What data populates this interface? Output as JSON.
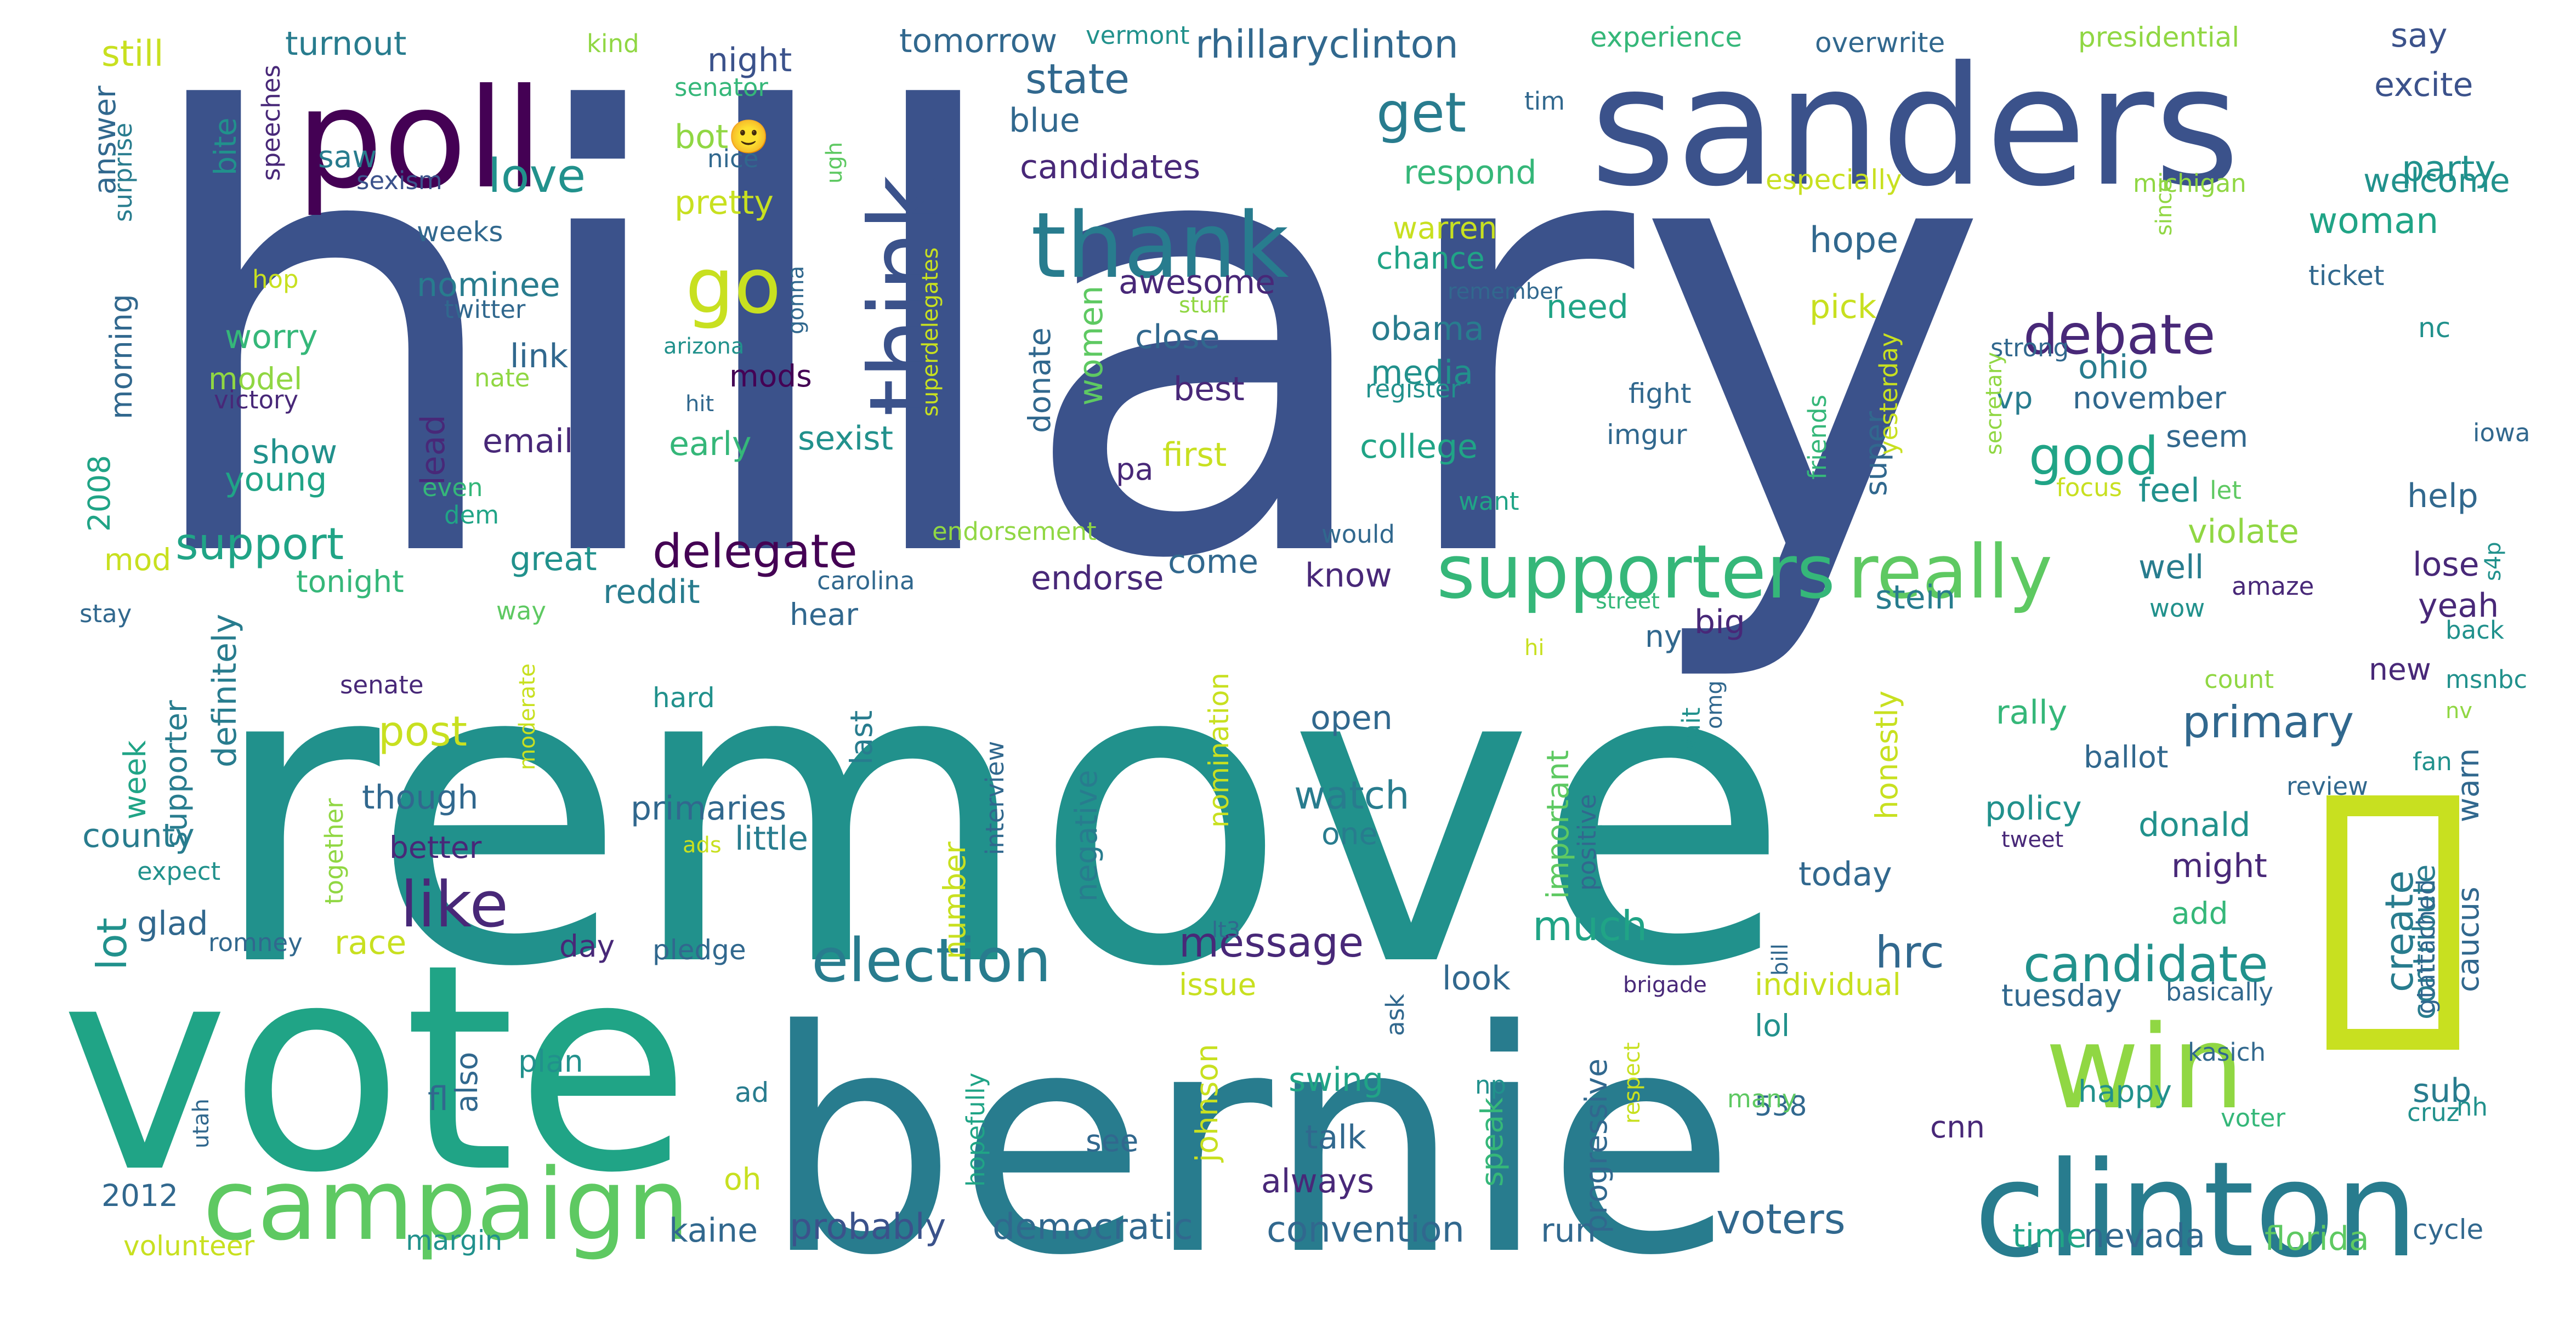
{
  "colors": {
    "background": "#ffffff",
    "palette": [
      "#443983",
      "#3b528b",
      "#31688e",
      "#287c8e",
      "#21918c",
      "#20a486",
      "#35b779",
      "#5ec962",
      "#90d743",
      "#c8e020",
      "#440154",
      "#482878"
    ]
  },
  "words": [
    {
      "text": "hillary",
      "c": 1
    },
    {
      "text": "remove",
      "c": 4
    },
    {
      "text": "vote",
      "c": 5
    },
    {
      "text": "bernie",
      "c": 3
    },
    {
      "text": "sanders",
      "c": 1
    },
    {
      "text": "poll",
      "c": 10
    },
    {
      "text": "clinton",
      "c": 3
    },
    {
      "text": "campaign",
      "c": 7
    },
    {
      "text": "win",
      "c": 8
    },
    {
      "text": "thank",
      "c": 3
    },
    {
      "text": "think",
      "c": 1
    },
    {
      "text": "supporters",
      "c": 6
    },
    {
      "text": "really",
      "c": 7
    },
    {
      "text": "election",
      "c": 3
    },
    {
      "text": "go",
      "c": 9
    },
    {
      "text": "debate",
      "c": 11
    },
    {
      "text": "get",
      "c": 3
    },
    {
      "text": "like",
      "c": 11
    },
    {
      "text": "candidate",
      "c": 4
    },
    {
      "text": "delegate",
      "c": 10
    },
    {
      "text": "good",
      "c": 5
    },
    {
      "text": "primary",
      "c": 2
    },
    {
      "text": "love",
      "c": 4
    },
    {
      "text": "support",
      "c": 5
    },
    {
      "text": "message",
      "c": 11
    },
    {
      "text": "voters",
      "c": 2
    },
    {
      "text": "state",
      "c": 2
    },
    {
      "text": "create",
      "c": 3
    },
    {
      "text": "party",
      "c": 4
    },
    {
      "text": "hrc",
      "c": 2
    },
    {
      "text": "post",
      "c": 9
    },
    {
      "text": "much",
      "c": 5
    },
    {
      "text": "lot",
      "c": 4
    },
    {
      "text": "watch",
      "c": 3
    },
    {
      "text": "democratic",
      "c": 2
    },
    {
      "text": "probably",
      "c": 1
    },
    {
      "text": "convention",
      "c": 2
    },
    {
      "text": "rhillaryclinton",
      "c": 2
    },
    {
      "text": "night",
      "c": 1
    },
    {
      "text": "tomorrow",
      "c": 2
    },
    {
      "text": "turnout",
      "c": 3
    },
    {
      "text": "still",
      "c": 9
    },
    {
      "text": "say",
      "c": 1
    },
    {
      "text": "excite",
      "c": 1
    },
    {
      "text": "woman",
      "c": 5
    },
    {
      "text": "welcome",
      "c": 4
    },
    {
      "text": "candidates",
      "c": 11
    },
    {
      "text": "blue",
      "c": 2
    },
    {
      "text": "bot🙂",
      "c": 8
    },
    {
      "text": "saw",
      "c": 3
    },
    {
      "text": "pretty",
      "c": 9
    },
    {
      "text": "respond",
      "c": 6
    },
    {
      "text": "hope",
      "c": 2
    },
    {
      "text": "awesome",
      "c": 11
    },
    {
      "text": "obama",
      "c": 3
    },
    {
      "text": "need",
      "c": 5
    },
    {
      "text": "pick",
      "c": 9
    },
    {
      "text": "media",
      "c": 4
    },
    {
      "text": "college",
      "c": 5
    },
    {
      "text": "ohio",
      "c": 3
    },
    {
      "text": "november",
      "c": 2
    },
    {
      "text": "vp",
      "c": 3
    },
    {
      "text": "women",
      "c": 7
    },
    {
      "text": "close",
      "c": 2
    },
    {
      "text": "best",
      "c": 11
    },
    {
      "text": "nominee",
      "c": 3
    },
    {
      "text": "worry",
      "c": 6
    },
    {
      "text": "model",
      "c": 8
    },
    {
      "text": "link",
      "c": 2
    },
    {
      "text": "mods",
      "c": 10
    },
    {
      "text": "email",
      "c": 11
    },
    {
      "text": "early",
      "c": 6
    },
    {
      "text": "sexist",
      "c": 4
    },
    {
      "text": "first",
      "c": 9
    },
    {
      "text": "pa",
      "c": 11
    },
    {
      "text": "show",
      "c": 4
    },
    {
      "text": "young",
      "c": 5
    },
    {
      "text": "seem",
      "c": 2
    },
    {
      "text": "feel",
      "c": 4
    },
    {
      "text": "violate",
      "c": 8
    },
    {
      "text": "help",
      "c": 2
    },
    {
      "text": "lose",
      "c": 11
    },
    {
      "text": "yeah",
      "c": 11
    },
    {
      "text": "well",
      "c": 3
    },
    {
      "text": "great",
      "c": 4
    },
    {
      "text": "come",
      "c": 2
    },
    {
      "text": "know",
      "c": 11
    },
    {
      "text": "endorse",
      "c": 11
    },
    {
      "text": "reddit",
      "c": 3
    },
    {
      "text": "tonight",
      "c": 6
    },
    {
      "text": "mod",
      "c": 9
    },
    {
      "text": "stein",
      "c": 3
    },
    {
      "text": "big",
      "c": 11
    },
    {
      "text": "ny",
      "c": 2
    },
    {
      "text": "open",
      "c": 2
    },
    {
      "text": "though",
      "c": 2
    },
    {
      "text": "better",
      "c": 11
    },
    {
      "text": "primaries",
      "c": 2
    },
    {
      "text": "little",
      "c": 3
    },
    {
      "text": "county",
      "c": 3
    },
    {
      "text": "race",
      "c": 9
    },
    {
      "text": "day",
      "c": 11
    },
    {
      "text": "glad",
      "c": 2
    },
    {
      "text": "rally",
      "c": 6
    },
    {
      "text": "ballot",
      "c": 2
    },
    {
      "text": "policy",
      "c": 4
    },
    {
      "text": "donald",
      "c": 4
    },
    {
      "text": "might",
      "c": 11
    },
    {
      "text": "add",
      "c": 6
    },
    {
      "text": "today",
      "c": 2
    },
    {
      "text": "individual",
      "c": 9
    },
    {
      "text": "look",
      "c": 2
    },
    {
      "text": "issue",
      "c": 9
    },
    {
      "text": "tuesday",
      "c": 2
    },
    {
      "text": "happy",
      "c": 4
    },
    {
      "text": "sub",
      "c": 3
    },
    {
      "text": "swing",
      "c": 5
    },
    {
      "text": "talk",
      "c": 2
    },
    {
      "text": "always",
      "c": 11
    },
    {
      "text": "run",
      "c": 2
    },
    {
      "text": "kaine",
      "c": 2
    },
    {
      "text": "time",
      "c": 5
    },
    {
      "text": "nevada",
      "c": 2
    },
    {
      "text": "florida",
      "c": 7
    },
    {
      "text": "cycle",
      "c": 2
    },
    {
      "text": "cnn",
      "c": 11
    },
    {
      "text": "oh",
      "c": 9
    },
    {
      "text": "2012",
      "c": 2
    },
    {
      "text": "fl",
      "c": 2
    },
    {
      "text": "538",
      "c": 2
    },
    {
      "text": "lol",
      "c": 4
    },
    {
      "text": "one",
      "c": 3
    },
    {
      "text": "new",
      "c": 11
    },
    {
      "text": "hear",
      "c": 2
    },
    {
      "text": "plan",
      "c": 4
    },
    {
      "text": "see",
      "c": 2
    },
    {
      "text": "ad",
      "c": 3
    },
    {
      "text": "margin",
      "c": 4
    },
    {
      "text": "volunteer",
      "c": 9
    },
    {
      "text": "experience",
      "c": 6
    },
    {
      "text": "overwrite",
      "c": 2
    },
    {
      "text": "presidential",
      "c": 8
    },
    {
      "text": "especially",
      "c": 9
    },
    {
      "text": "michigan",
      "c": 8
    },
    {
      "text": "ticket",
      "c": 2
    },
    {
      "text": "nc",
      "c": 4
    },
    {
      "text": "iowa",
      "c": 2
    },
    {
      "text": "vermont",
      "c": 4
    },
    {
      "text": "kind",
      "c": 8
    },
    {
      "text": "senator",
      "c": 6
    },
    {
      "text": "tim",
      "c": 2
    },
    {
      "text": "nice",
      "c": 2
    },
    {
      "text": "sexism",
      "c": 1
    },
    {
      "text": "weeks",
      "c": 2
    },
    {
      "text": "hop",
      "c": 9
    },
    {
      "text": "twitter",
      "c": 2
    },
    {
      "text": "nate",
      "c": 8
    },
    {
      "text": "victory",
      "c": 11
    },
    {
      "text": "hit",
      "c": 2
    },
    {
      "text": "arizona",
      "c": 4
    },
    {
      "text": "gonna",
      "c": 2
    },
    {
      "text": "stuff",
      "c": 8
    },
    {
      "text": "remember",
      "c": 2
    },
    {
      "text": "warren",
      "c": 9
    },
    {
      "text": "chance",
      "c": 5
    },
    {
      "text": "register",
      "c": 4
    },
    {
      "text": "fight",
      "c": 2
    },
    {
      "text": "imgur",
      "c": 2
    },
    {
      "text": "strong",
      "c": 2
    },
    {
      "text": "super",
      "c": 2
    },
    {
      "text": "want",
      "c": 5
    },
    {
      "text": "focus",
      "c": 9
    },
    {
      "text": "let",
      "c": 7
    },
    {
      "text": "endorsement",
      "c": 8
    },
    {
      "text": "would",
      "c": 2
    },
    {
      "text": "carolina",
      "c": 2
    },
    {
      "text": "even",
      "c": 6
    },
    {
      "text": "dem",
      "c": 5
    },
    {
      "text": "stay",
      "c": 2
    },
    {
      "text": "way",
      "c": 7
    },
    {
      "text": "street",
      "c": 6
    },
    {
      "text": "amaze",
      "c": 11
    },
    {
      "text": "wow",
      "c": 4
    },
    {
      "text": "back",
      "c": 4
    },
    {
      "text": "count",
      "c": 8
    },
    {
      "text": "msnbc",
      "c": 4
    },
    {
      "text": "nv",
      "c": 8
    },
    {
      "text": "fan",
      "c": 4
    },
    {
      "text": "review",
      "c": 2
    },
    {
      "text": "hi",
      "c": 9
    },
    {
      "text": "senate",
      "c": 11
    },
    {
      "text": "hard",
      "c": 4
    },
    {
      "text": "wait",
      "c": 4
    },
    {
      "text": "omg",
      "c": 2
    },
    {
      "text": "expect",
      "c": 4
    },
    {
      "text": "romney",
      "c": 2
    },
    {
      "text": "ads",
      "c": 9
    },
    {
      "text": "pledge",
      "c": 2
    },
    {
      "text": "lt3",
      "c": 2
    },
    {
      "text": "tweet",
      "c": 11
    },
    {
      "text": "basically",
      "c": 2
    },
    {
      "text": "np",
      "c": 4
    },
    {
      "text": "brigade",
      "c": 11
    },
    {
      "text": "kasich",
      "c": 2
    },
    {
      "text": "voter",
      "c": 6
    },
    {
      "text": "cruz",
      "c": 4
    },
    {
      "text": "nh",
      "c": 4
    },
    {
      "text": "many",
      "c": 7
    },
    {
      "text": "utah",
      "c": 2
    },
    {
      "text": "answer",
      "c": 2
    },
    {
      "text": "surprise",
      "c": 3
    },
    {
      "text": "speeches",
      "c": 11
    },
    {
      "text": "bite",
      "c": 4
    },
    {
      "text": "ugh",
      "c": 7
    },
    {
      "text": "2008",
      "c": 5
    },
    {
      "text": "morning",
      "c": 2
    },
    {
      "text": "lead",
      "c": 11
    },
    {
      "text": "superdelegates",
      "c": 9
    },
    {
      "text": "donate",
      "c": 2
    },
    {
      "text": "supporter",
      "c": 3
    },
    {
      "text": "definitely",
      "c": 3
    },
    {
      "text": "week",
      "c": 5
    },
    {
      "text": "together",
      "c": 8
    },
    {
      "text": "moderate",
      "c": 9
    },
    {
      "text": "also",
      "c": 2
    },
    {
      "text": "number",
      "c": 9
    },
    {
      "text": "last",
      "c": 3
    },
    {
      "text": "negative",
      "c": 3
    },
    {
      "text": "nomination",
      "c": 9
    },
    {
      "text": "important",
      "c": 7
    },
    {
      "text": "positive",
      "c": 2
    },
    {
      "text": "progressive",
      "c": 2
    },
    {
      "text": "honestly",
      "c": 9
    },
    {
      "text": "friends",
      "c": 6
    },
    {
      "text": "yesterday",
      "c": 9
    },
    {
      "text": "secretary",
      "c": 8
    },
    {
      "text": "since",
      "c": 8
    },
    {
      "text": "s4p",
      "c": 4
    },
    {
      "text": "contribute",
      "c": 3
    },
    {
      "text": "warn",
      "c": 2
    },
    {
      "text": "caucus",
      "c": 2
    },
    {
      "text": "gtattached",
      "c": 2
    },
    {
      "text": "interview",
      "c": 2
    },
    {
      "text": "johnson",
      "c": 9
    },
    {
      "text": "speak",
      "c": 6
    },
    {
      "text": "hopefully",
      "c": 5
    },
    {
      "text": "ask",
      "c": 2
    },
    {
      "text": "bill",
      "c": 2
    },
    {
      "text": "respect",
      "c": 9
    }
  ]
}
